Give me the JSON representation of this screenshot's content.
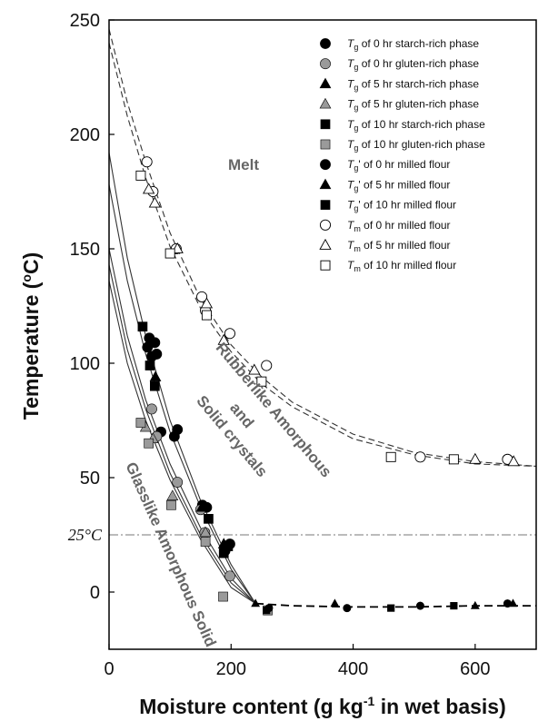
{
  "chart_data": {
    "type": "scatter",
    "title": "",
    "xlabel": "Moisture content (g kg",
    "xlabel_sup": "-1",
    "xlabel_tail": " in wet basis)",
    "ylabel": "Temperature (",
    "ylabel_sup": "o",
    "ylabel_tail": "C)",
    "xlim": [
      0,
      700
    ],
    "ylim": [
      -25,
      250
    ],
    "x_ticks": [
      0,
      200,
      400,
      600
    ],
    "y_ticks": [
      0,
      50,
      100,
      150,
      200,
      250
    ],
    "grid": false,
    "legend_position": "top-right",
    "reference_line": {
      "y": 25,
      "label": "25°C",
      "style": "dash-dot"
    },
    "regions": [
      "Melt",
      "Rubberlike Amorphous",
      "and",
      "Solid crystals",
      "Glasslike Amorphous Solid"
    ],
    "series": [
      {
        "sym": "T",
        "sub": "g",
        "prime": "",
        "name": " of 0 hr starch-rich phase",
        "marker": "circle",
        "fill": "#000000",
        "x": [
          63,
          66,
          70,
          75,
          78,
          85,
          107,
          112,
          153,
          160,
          190,
          198
        ],
        "y": [
          107,
          111,
          103,
          109,
          104,
          70,
          68,
          71,
          38,
          37,
          18,
          21
        ]
      },
      {
        "sym": "T",
        "sub": "g",
        "prime": "",
        "name": " of 0 hr gluten-rich phase",
        "marker": "circle",
        "fill": "#9a9a9a",
        "x": [
          70,
          78,
          112,
          150,
          157,
          198
        ],
        "y": [
          80,
          68,
          48,
          36,
          26,
          7
        ]
      },
      {
        "sym": "T",
        "sub": "g",
        "prime": "",
        "name": " of 5 hr starch-rich phase",
        "marker": "triangle",
        "fill": "#000000",
        "x": [
          68,
          76,
          152,
          188
        ],
        "y": [
          110,
          94,
          37,
          21
        ]
      },
      {
        "sym": "T",
        "sub": "g",
        "prime": "",
        "name": " of 5 hr gluten-rich phase",
        "marker": "triangle",
        "fill": "#9a9a9a",
        "x": [
          60,
          72,
          104,
          158
        ],
        "y": [
          72,
          67,
          42,
          26
        ]
      },
      {
        "sym": "T",
        "sub": "g",
        "prime": "",
        "name": " of 10 hr starch-rich phase",
        "marker": "square",
        "fill": "#000000",
        "x": [
          55,
          67,
          75,
          163,
          188,
          195
        ],
        "y": [
          116,
          99,
          90,
          32,
          17,
          20
        ]
      },
      {
        "sym": "T",
        "sub": "g",
        "prime": "",
        "name": " of 10 hr gluten-rich phase",
        "marker": "square",
        "fill": "#9a9a9a",
        "x": [
          52,
          65,
          102,
          158,
          187,
          260
        ],
        "y": [
          74,
          65,
          38,
          22,
          -2,
          -8
        ]
      },
      {
        "sym": "T",
        "sub": "g",
        "prime": "'",
        "name": " of 0 hr milled flour",
        "marker": "circle-small",
        "fill": "#000000",
        "x": [
          262,
          390,
          510,
          653
        ],
        "y": [
          -7,
          -7,
          -6,
          -5
        ]
      },
      {
        "sym": "T",
        "sub": "g",
        "prime": "'",
        "name": " of 5 hr milled flour",
        "marker": "triangle-small",
        "fill": "#000000",
        "x": [
          240,
          370,
          600,
          662
        ],
        "y": [
          -5,
          -5,
          -6,
          -5
        ]
      },
      {
        "sym": "T",
        "sub": "g",
        "prime": "'",
        "name": " of 10 hr milled flour",
        "marker": "square-small",
        "fill": "#000000",
        "x": [
          258,
          462,
          565
        ],
        "y": [
          -8,
          -7,
          -6
        ]
      },
      {
        "sym": "T",
        "sub": "m",
        "prime": "",
        "name": " of 0 hr milled flour",
        "marker": "circle",
        "fill": "#ffffff",
        "x": [
          62,
          72,
          110,
          152,
          158,
          198,
          258,
          510,
          653
        ],
        "y": [
          188,
          175,
          150,
          129,
          123,
          113,
          99,
          59,
          58
        ]
      },
      {
        "sym": "T",
        "sub": "m",
        "prime": "",
        "name": " of 5 hr milled flour",
        "marker": "triangle",
        "fill": "#ffffff",
        "x": [
          65,
          75,
          112,
          160,
          188,
          238,
          600,
          663
        ],
        "y": [
          176,
          170,
          150,
          126,
          110,
          97,
          58,
          57
        ]
      },
      {
        "sym": "T",
        "sub": "m",
        "prime": "",
        "name": " of 10 hr milled flour",
        "marker": "square",
        "fill": "#ffffff",
        "x": [
          52,
          100,
          160,
          250,
          462,
          565
        ],
        "y": [
          182,
          148,
          121,
          92,
          59,
          58
        ]
      }
    ],
    "curves": [
      {
        "style": "dashed",
        "x": [
          0,
          30,
          60,
          100,
          150,
          200,
          250,
          300,
          400,
          500,
          600,
          700
        ],
        "y": [
          246,
          214,
          188,
          157,
          128,
          108,
          94,
          83,
          69,
          61,
          57,
          55
        ]
      },
      {
        "style": "dashed",
        "x": [
          0,
          30,
          60,
          100,
          150,
          200,
          250,
          300,
          400,
          500,
          600,
          700
        ],
        "y": [
          240,
          208,
          181,
          151,
          124,
          105,
          91,
          81,
          67,
          60,
          56,
          55
        ]
      },
      {
        "style": "solid",
        "x": [
          0,
          30,
          60,
          100,
          150,
          200,
          240
        ],
        "y": [
          192,
          146,
          112,
          75,
          40,
          12,
          -5
        ]
      },
      {
        "style": "solid",
        "x": [
          0,
          30,
          60,
          100,
          150,
          200,
          240
        ],
        "y": [
          178,
          136,
          104,
          70,
          37,
          10,
          -5
        ]
      },
      {
        "style": "solid",
        "x": [
          0,
          30,
          60,
          100,
          150,
          200,
          240
        ],
        "y": [
          150,
          112,
          84,
          56,
          28,
          6,
          -5
        ]
      },
      {
        "style": "solid",
        "x": [
          0,
          30,
          60,
          100,
          150,
          200,
          240
        ],
        "y": [
          143,
          106,
          80,
          52,
          25,
          4,
          -5
        ]
      },
      {
        "style": "solid",
        "x": [
          0,
          30,
          60,
          100,
          150,
          200,
          240
        ],
        "y": [
          136,
          100,
          75,
          49,
          23,
          2,
          -5
        ]
      },
      {
        "style": "dashed-bold",
        "x": [
          240,
          300,
          400,
          500,
          600,
          700
        ],
        "y": [
          -5,
          -6,
          -6.5,
          -6.5,
          -6,
          -6
        ]
      }
    ]
  }
}
